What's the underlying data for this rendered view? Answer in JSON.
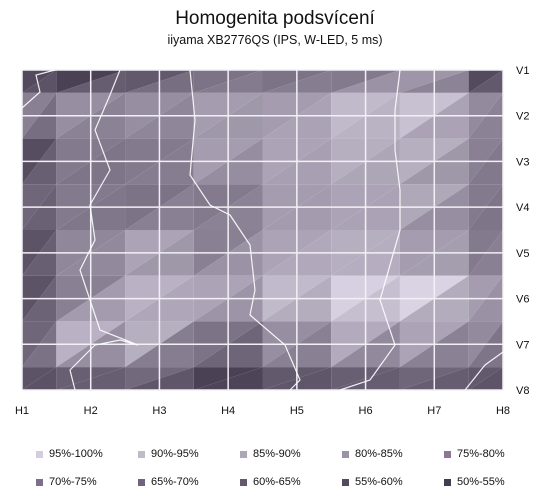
{
  "title": "Homogenita podsvícení",
  "subtitle": "iiyama XB2776QS   (IPS, W-LED, 5 ms)",
  "chart_data": {
    "type": "heatmap",
    "x_labels": [
      "H1",
      "H2",
      "H3",
      "H4",
      "H5",
      "H6",
      "H7",
      "H8"
    ],
    "y_labels": [
      "V1",
      "V2",
      "V3",
      "V4",
      "V5",
      "V6",
      "V7",
      "V8"
    ],
    "values": [
      [
        55,
        52,
        60,
        68,
        68,
        70,
        78,
        55
      ],
      [
        72,
        76,
        76,
        80,
        80,
        88,
        90,
        75
      ],
      [
        56,
        70,
        70,
        80,
        82,
        85,
        85,
        72
      ],
      [
        64,
        70,
        68,
        70,
        80,
        82,
        83,
        70
      ],
      [
        58,
        74,
        82,
        72,
        82,
        85,
        80,
        70
      ],
      [
        58,
        72,
        86,
        82,
        88,
        94,
        95,
        80
      ],
      [
        64,
        86,
        85,
        68,
        76,
        84,
        82,
        75
      ],
      [
        58,
        62,
        65,
        52,
        60,
        62,
        64,
        60
      ]
    ],
    "legend": [
      "95%-100%",
      "90%-95%",
      "85%-90%",
      "80%-85%",
      "75%-80%",
      "70%-75%",
      "65%-70%",
      "60%-65%",
      "55%-60%",
      "50%-55%"
    ],
    "legend_colors": [
      "#d4cdde",
      "#c1bacb",
      "#ada6b7",
      "#9b92a7",
      "#8a7896",
      "#7d6f89",
      "#6f647c",
      "#615869",
      "#54495d",
      "#463c50"
    ]
  }
}
